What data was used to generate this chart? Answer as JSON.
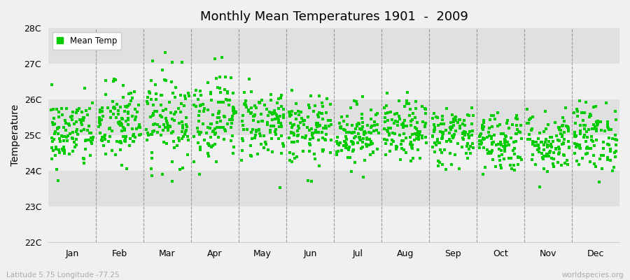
{
  "title": "Monthly Mean Temperatures 1901  -  2009",
  "ylabel": "Temperature",
  "ylim": [
    22,
    28
  ],
  "yticks": [
    22,
    23,
    24,
    25,
    26,
    27,
    28
  ],
  "ytick_labels": [
    "22C",
    "23C",
    "24C",
    "25C",
    "26C",
    "27C",
    "28C"
  ],
  "months": [
    "Jan",
    "Feb",
    "Mar",
    "Apr",
    "May",
    "Jun",
    "Jul",
    "Aug",
    "Sep",
    "Oct",
    "Nov",
    "Dec"
  ],
  "legend_label": "Mean Temp",
  "marker_color": "#00CC00",
  "marker": "s",
  "marker_size": 9,
  "bg_color": "#F0F0F0",
  "band_color_dark": "#E0E0E0",
  "band_color_light": "#F0F0F0",
  "fig_bg_color": "#F0F0F0",
  "bottom_left_text": "Latitude 5.75 Longitude -77.25",
  "bottom_right_text": "worldspecies.org",
  "years": 109,
  "seed": 42,
  "monthly_means": [
    25.05,
    25.3,
    25.5,
    25.55,
    25.35,
    25.1,
    25.05,
    25.1,
    25.0,
    24.85,
    24.8,
    24.95
  ],
  "monthly_stds": [
    0.5,
    0.58,
    0.65,
    0.62,
    0.52,
    0.48,
    0.42,
    0.42,
    0.42,
    0.44,
    0.44,
    0.48
  ],
  "dashed_color": "#999999",
  "spine_color": "#CCCCCC"
}
